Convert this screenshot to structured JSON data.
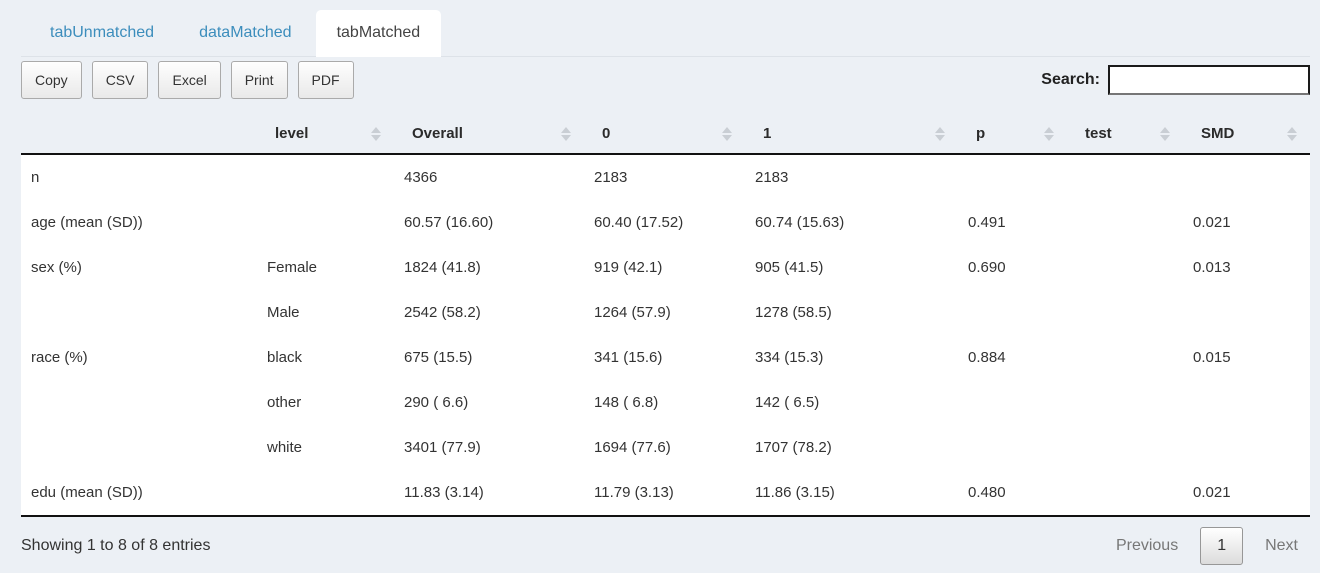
{
  "tabs": [
    {
      "label": "tabUnmatched",
      "active": false
    },
    {
      "label": "dataMatched",
      "active": false
    },
    {
      "label": "tabMatched",
      "active": true
    }
  ],
  "toolbar": {
    "buttons": [
      "Copy",
      "CSV",
      "Excel",
      "Print",
      "PDF"
    ],
    "search_label": "Search:",
    "search_value": "",
    "search_placeholder": ""
  },
  "table": {
    "headers": [
      "",
      "level",
      "Overall",
      "0",
      "1",
      "p",
      "test",
      "SMD"
    ],
    "rows": [
      [
        "n",
        "",
        "4366",
        "2183",
        "2183",
        "",
        "",
        ""
      ],
      [
        "age (mean (SD))",
        "",
        "60.57 (16.60)",
        "60.40 (17.52)",
        "60.74 (15.63)",
        "0.491",
        "",
        "0.021"
      ],
      [
        "sex (%)",
        "Female",
        "1824 (41.8)",
        "919 (42.1)",
        "905 (41.5)",
        "0.690",
        "",
        "0.013"
      ],
      [
        "",
        "Male",
        "2542 (58.2)",
        "1264 (57.9)",
        "1278 (58.5)",
        "",
        "",
        ""
      ],
      [
        "race (%)",
        "black",
        "675 (15.5)",
        "341 (15.6)",
        "334 (15.3)",
        "0.884",
        "",
        "0.015"
      ],
      [
        "",
        "other",
        "290 ( 6.6)",
        "148 ( 6.8)",
        "142 ( 6.5)",
        "",
        "",
        ""
      ],
      [
        "",
        "white",
        "3401 (77.9)",
        "1694 (77.6)",
        "1707 (78.2)",
        "",
        "",
        ""
      ],
      [
        "edu (mean (SD))",
        "",
        "11.83 (3.14)",
        "11.79 (3.13)",
        "11.86 (3.15)",
        "0.480",
        "",
        "0.021"
      ]
    ]
  },
  "footer": {
    "info": "Showing 1 to 8 of 8 entries",
    "pagination": {
      "previous": "Previous",
      "current": "1",
      "next": "Next"
    }
  },
  "colors": {
    "page_background": "#ecf0f5",
    "tab_link_blue": "#3c8dbc",
    "active_tab_background": "#ffffff",
    "table_row_background": "#ffffff",
    "dark_table_border": "#111111",
    "sort_arrow_gray": "#c9ced4",
    "disabled_pagination_text": "#777777"
  }
}
